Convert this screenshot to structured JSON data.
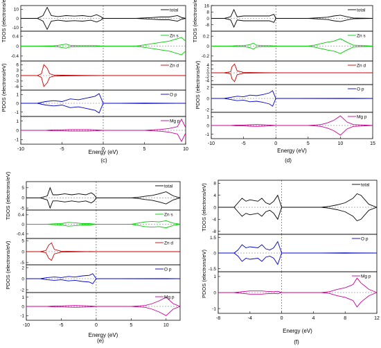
{
  "chart_data": [
    {
      "type": "line",
      "caption": "(c)",
      "xlabel": "Energy (eV)",
      "tdos_label": "TDOS (electrons/eV)",
      "pdos_label": "PDOS (electrons/eV)",
      "xlim": [
        -10,
        10
      ],
      "xticks": [
        -10,
        -5,
        0,
        5,
        10
      ],
      "panels": [
        {
          "name": "total",
          "color": "#000000",
          "yticks": [
            10,
            0,
            -10
          ],
          "ylim": [
            -14,
            14
          ],
          "x": [
            -10,
            -8,
            -7.3,
            -6.8,
            -6.3,
            -5.5,
            -4.5,
            -3.5,
            -2.5,
            -1.5,
            -0.8,
            -0.3,
            0,
            2,
            4,
            5,
            6,
            7,
            8,
            9,
            9.5,
            10
          ],
          "y": [
            0,
            0,
            3,
            12,
            3,
            2,
            3,
            2.5,
            3,
            2,
            4,
            2,
            0,
            0,
            0,
            0.5,
            1,
            1.5,
            1.5,
            3,
            1,
            0
          ]
        },
        {
          "name": "Zn s",
          "color": "#00cc00",
          "yticks": [
            0.4,
            0.0,
            -0.4
          ],
          "ylim": [
            -0.6,
            0.6
          ],
          "x": [
            -10,
            -8,
            -6,
            -5.5,
            -4.5,
            -4,
            -3,
            -2,
            -1,
            0,
            2,
            4,
            5,
            6,
            7,
            8,
            9,
            9.5,
            10
          ],
          "y": [
            0,
            0,
            0.01,
            0.03,
            0.08,
            0.03,
            0.02,
            0.02,
            0.02,
            0,
            0,
            0,
            0.05,
            0.1,
            0.15,
            0.2,
            0.3,
            0.35,
            0.2
          ]
        },
        {
          "name": "Zn d",
          "color": "#cc0000",
          "yticks": [
            6,
            3,
            0,
            -3,
            -6
          ],
          "ylim": [
            -8,
            8
          ],
          "x": [
            -10,
            -8,
            -7.5,
            -7.2,
            -6.8,
            -6.5,
            -6,
            -5,
            -3,
            0,
            5,
            10
          ],
          "y": [
            0,
            0,
            1,
            6,
            4,
            1,
            0.3,
            0.2,
            0.1,
            0,
            0,
            0
          ]
        },
        {
          "name": "O p",
          "color": "#0000cc",
          "yticks": [
            1,
            0,
            -1
          ],
          "ylim": [
            -1.5,
            1.5
          ],
          "x": [
            -10,
            -8,
            -7,
            -6,
            -5,
            -4,
            -3,
            -2,
            -1,
            -0.5,
            0,
            2,
            5,
            10
          ],
          "y": [
            0,
            0,
            0.2,
            0.3,
            0.2,
            0.5,
            0.4,
            0.6,
            0.8,
            1.1,
            0,
            0,
            0.02,
            0
          ]
        },
        {
          "name": "Mg p",
          "color": "#cc0099",
          "yticks": [
            1,
            0,
            -1
          ],
          "ylim": [
            -1.5,
            1.5
          ],
          "x": [
            -10,
            -7,
            -6,
            -5,
            -4,
            -3,
            -2,
            -1,
            0,
            2,
            5,
            6,
            7,
            8,
            9,
            9.5,
            10
          ],
          "y": [
            0,
            0,
            0.05,
            0.05,
            0.08,
            0.08,
            0.08,
            0.05,
            0,
            0,
            0,
            0.05,
            0.1,
            0.2,
            0.4,
            1.2,
            0.3
          ]
        }
      ]
    },
    {
      "type": "line",
      "caption": "(d)",
      "xlabel": "Energy (eV)",
      "tdos_label": "TDOS (electrons/eV)",
      "pdos_label": "PDOS (electrons/eV)",
      "xlim": [
        -10,
        15
      ],
      "xticks": [
        -10,
        -5,
        0,
        5,
        10,
        15
      ],
      "panels": [
        {
          "name": "total",
          "color": "#000000",
          "yticks": [
            16,
            8,
            0,
            -8
          ],
          "ylim": [
            -16,
            16
          ],
          "x": [
            -10,
            -8,
            -7,
            -6.5,
            -6,
            -5,
            -4,
            -3,
            -2,
            -1,
            -0.3,
            0,
            2,
            5,
            6,
            7,
            8,
            9,
            10,
            11,
            12,
            15
          ],
          "y": [
            0,
            0,
            2,
            11,
            2,
            3,
            3,
            3,
            3,
            3,
            5,
            0,
            0,
            0,
            0.5,
            1,
            1.5,
            3,
            4,
            2,
            0.5,
            0
          ]
        },
        {
          "name": "Zn s",
          "color": "#00cc00",
          "yticks": [
            0.2,
            0.0,
            -0.2
          ],
          "ylim": [
            -0.3,
            0.3
          ],
          "x": [
            -10,
            -7,
            -6,
            -5,
            -4,
            -3.5,
            -3,
            -2,
            -1,
            0,
            3,
            5,
            6,
            7,
            8,
            9,
            10,
            11,
            12,
            15
          ],
          "y": [
            0,
            0,
            0.01,
            0.01,
            0.03,
            0.06,
            0.02,
            0.01,
            0.01,
            0,
            0,
            0,
            0.02,
            0.05,
            0.08,
            0.1,
            0.15,
            0.08,
            0.02,
            0
          ]
        },
        {
          "name": "Zn d",
          "color": "#cc0000",
          "yticks": [
            4,
            2,
            0,
            -2,
            -4
          ],
          "ylim": [
            -6,
            6
          ],
          "x": [
            -10,
            -8,
            -7,
            -6.8,
            -6.4,
            -6,
            -5,
            -3,
            0,
            5,
            15
          ],
          "y": [
            0,
            0,
            0.5,
            3,
            4.5,
            1,
            0.2,
            0.1,
            0,
            0,
            0
          ]
        },
        {
          "name": "O p",
          "color": "#0000cc",
          "yticks": [
            2,
            0,
            -2
          ],
          "ylim": [
            -2.5,
            2.5
          ],
          "x": [
            -10,
            -8,
            -7,
            -6,
            -5,
            -4,
            -3,
            -2,
            -1,
            -0.5,
            0,
            3,
            10,
            15
          ],
          "y": [
            0,
            0,
            0.2,
            0.4,
            0.3,
            0.6,
            0.5,
            0.7,
            1.0,
            1.4,
            0,
            0,
            0.02,
            0
          ]
        },
        {
          "name": "Mg p",
          "color": "#cc0099",
          "yticks": [
            1,
            0,
            -1
          ],
          "ylim": [
            -1.5,
            1.5
          ],
          "x": [
            -10,
            -7,
            -6,
            -5,
            -4,
            -3,
            -2,
            -1,
            0,
            3,
            5,
            6,
            7,
            8,
            9,
            10,
            11,
            12,
            15
          ],
          "y": [
            0,
            0,
            0.05,
            0.05,
            0.08,
            0.1,
            0.08,
            0.05,
            0,
            0,
            0,
            0.05,
            0.1,
            0.3,
            0.6,
            1.1,
            0.4,
            0.1,
            0
          ]
        }
      ]
    },
    {
      "type": "line",
      "caption": "(e)",
      "xlabel": "Energy (eV)",
      "tdos_label": "TDOS (electrons/eV)",
      "pdos_label": "PDOS (electrons/eV)",
      "xlim": [
        -10,
        12
      ],
      "xticks": [
        -10,
        -5,
        0,
        5,
        10
      ],
      "panels": [
        {
          "name": "total",
          "color": "#000000",
          "yticks": [
            5,
            0,
            -5
          ],
          "ylim": [
            -6,
            8
          ],
          "x": [
            -10,
            -8,
            -7,
            -6.6,
            -6.2,
            -5.5,
            -4.5,
            -3.5,
            -2.5,
            -1.5,
            -0.7,
            -0.3,
            0,
            2,
            5,
            6,
            7,
            8,
            9,
            10,
            11,
            12
          ],
          "y": [
            0,
            0,
            1,
            5,
            1.5,
            1.5,
            2,
            1.5,
            2,
            1.5,
            2.5,
            1.5,
            0,
            0,
            0,
            0.3,
            0.8,
            1.2,
            2,
            3,
            1,
            0
          ]
        },
        {
          "name": "Zn s",
          "color": "#00cc00",
          "yticks": [
            0.4,
            0.0,
            -0.4
          ],
          "ylim": [
            -0.6,
            0.6
          ],
          "x": [
            -10,
            -7,
            -6,
            -5,
            -4,
            -3,
            -2,
            -1,
            0,
            3,
            5,
            6,
            7,
            8,
            9,
            10,
            11,
            12
          ],
          "y": [
            0,
            0,
            0.02,
            0.03,
            0.08,
            0.06,
            0.03,
            0.03,
            0,
            0,
            0,
            0.05,
            0.1,
            0.12,
            0.1,
            0.15,
            0.05,
            0
          ]
        },
        {
          "name": "Zn d",
          "color": "#cc0000",
          "yticks": [
            5,
            0,
            -5
          ],
          "ylim": [
            -6,
            6
          ],
          "x": [
            -10,
            -8,
            -7.2,
            -6.8,
            -6.4,
            -6,
            -5,
            -3,
            0,
            5,
            12
          ],
          "y": [
            0,
            0,
            0.5,
            3,
            4,
            1,
            0.2,
            0.1,
            0,
            0,
            0
          ]
        },
        {
          "name": "O p",
          "color": "#0000cc",
          "yticks": [
            2,
            0,
            -2
          ],
          "ylim": [
            -2.5,
            2.5
          ],
          "x": [
            -10,
            -8,
            -7,
            -6,
            -5,
            -4,
            -3,
            -2,
            -1,
            -0.5,
            0,
            3,
            10,
            12
          ],
          "y": [
            0,
            0,
            0.2,
            0.3,
            0.2,
            0.4,
            0.3,
            0.5,
            0.6,
            0.9,
            0,
            0,
            0.02,
            0
          ]
        },
        {
          "name": "Mg p",
          "color": "#cc0099",
          "yticks": [
            1,
            0,
            -1
          ],
          "ylim": [
            -1.5,
            1.5
          ],
          "x": [
            -10,
            -7,
            -6,
            -5,
            -4,
            -3,
            -2,
            -1,
            0,
            3,
            5,
            6,
            7,
            8,
            9,
            10,
            11,
            12
          ],
          "y": [
            0,
            0,
            0.05,
            0.05,
            0.08,
            0.1,
            0.08,
            0.05,
            0,
            0,
            0,
            0.05,
            0.1,
            0.3,
            0.6,
            1.0,
            0.3,
            0
          ]
        }
      ]
    },
    {
      "type": "line",
      "caption": "(f)",
      "xlabel": "Energy (eV)",
      "tdos_label": "TDOS (electrons/eV)",
      "pdos_label": "PDOS (electrons/eV)",
      "xlim": [
        -8,
        12
      ],
      "xticks": [
        -8,
        -4,
        0,
        4,
        8,
        12
      ],
      "panels": [
        {
          "name": "total",
          "color": "#000000",
          "yticks": [
            8,
            4,
            0,
            -4,
            -8
          ],
          "ylim": [
            -9,
            9
          ],
          "x": [
            -8,
            -6,
            -5.5,
            -5,
            -4.5,
            -4,
            -3,
            -2.5,
            -2,
            -1.5,
            -1,
            -0.5,
            0,
            2,
            5,
            6,
            7,
            8,
            9,
            9.5,
            10,
            11,
            12
          ],
          "y": [
            0,
            0,
            1.5,
            3,
            2,
            2.5,
            2,
            3,
            1.5,
            1,
            2,
            4,
            0,
            0,
            0,
            0.3,
            0.8,
            1.5,
            3,
            4.5,
            4,
            1,
            0
          ]
        },
        {
          "name": "O p",
          "color": "#0000cc",
          "yticks": [
            1.5,
            0.0,
            -1.5
          ],
          "ylim": [
            -1.8,
            1.8
          ],
          "x": [
            -8,
            -6,
            -5.5,
            -5,
            -4.5,
            -4,
            -3,
            -2.5,
            -2,
            -1.5,
            -1,
            -0.5,
            0,
            2,
            5,
            8,
            12
          ],
          "y": [
            0,
            0,
            0.3,
            0.8,
            0.5,
            0.6,
            0.5,
            0.8,
            0.4,
            0.3,
            0.5,
            1.1,
            0,
            0,
            0,
            0.02,
            0
          ]
        },
        {
          "name": "Mg p",
          "color": "#cc0099",
          "yticks": [
            1,
            0,
            -1
          ],
          "ylim": [
            -1.3,
            1.3
          ],
          "x": [
            -8,
            -6,
            -5,
            -4,
            -3,
            -2.5,
            -2,
            -1,
            -0.5,
            0,
            2,
            5,
            6,
            7,
            8,
            9,
            9.5,
            10,
            11,
            12
          ],
          "y": [
            0,
            0,
            0.05,
            0.1,
            0.1,
            0.1,
            0.08,
            0.05,
            0.08,
            0,
            0,
            0,
            0.05,
            0.2,
            0.3,
            0.5,
            0.9,
            0.6,
            0.2,
            0
          ]
        }
      ]
    }
  ]
}
